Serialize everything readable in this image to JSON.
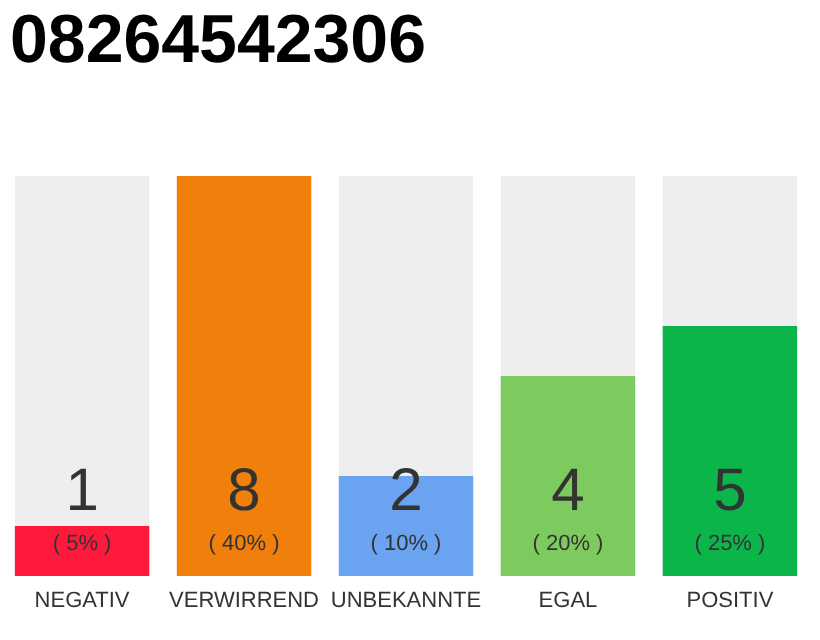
{
  "chart_data": {
    "type": "bar",
    "title": "08264542306",
    "categories": [
      "NEGATIV",
      "VERWIRREND",
      "UNBEKANNTE",
      "EGAL",
      "POSITIV"
    ],
    "values": [
      1,
      8,
      2,
      4,
      5
    ],
    "colors": [
      "#ff1a3c",
      "#f07f0c",
      "#6aa3ef",
      "#7dcb5e",
      "#0bb54a"
    ],
    "ylim": [
      0,
      8
    ],
    "data_labels": true,
    "tick_labels": "x",
    "grid": false,
    "annotations": [
      "( 5% )",
      "( 40% )",
      "( 10% )",
      "( 20% )",
      "( 25% )"
    ]
  }
}
